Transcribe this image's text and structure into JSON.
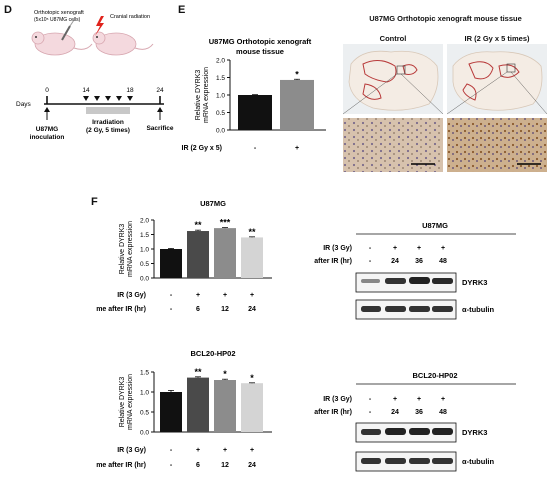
{
  "colors": {
    "black_bar": "#111111",
    "dark_gray": "#4a4a4a",
    "mid_gray": "#8c8c8c",
    "light_gray": "#b9b9b9",
    "pale_gray": "#d4d4d4",
    "radiation_red": "#e0231c",
    "tissue_bg": "#e9ecef",
    "ihc_bg": "#d9c2ab",
    "outline_red": "#c23c3c"
  },
  "panel_D": {
    "letter": "D",
    "mouse_label_1": "Orthotopic xenograft",
    "mouse_label_2": "(5x10⁵ U87MG cells)",
    "radiation_label": "Cranial radiation",
    "days_label": "Days",
    "days": [
      "0",
      "14",
      "18",
      "24"
    ],
    "event_1_line1": "U87MG",
    "event_1_line2": "inoculation",
    "event_2_line1": "Irradiation",
    "event_2_line2": "(2 Gy, 5 times)",
    "event_3": "Sacrifice"
  },
  "panel_E": {
    "letter": "E",
    "chart_title_1": "U87MG Orthotopic xenograft",
    "chart_title_2": "mouse tissue",
    "tissue_title": "U87MG Orthotopic xenograft mouse tissue",
    "control_label": "Control",
    "ir_label": "IR (2 Gy x 5 times)"
  },
  "panel_F": {
    "letter": "F",
    "blot_u87_title": "U87MG",
    "blot_bcl_title": "BCL20-HP02",
    "blot_row_ir": "IR (3 Gy)",
    "blot_row_time": "Time after IR (hr)",
    "blot_ir_values": [
      "-",
      "+",
      "+",
      "+"
    ],
    "blot_time_values": [
      "-",
      "24",
      "36",
      "48"
    ],
    "band_dyrk3": "DYRK3",
    "band_tubulin": "α-tubulin"
  },
  "chart_data": [
    {
      "id": "E",
      "type": "bar",
      "title": "U87MG Orthotopic xenograft mouse tissue",
      "ylabel": "Relative DYRK3 mRNA expression",
      "ylim": [
        0,
        2.0
      ],
      "yticks": [
        "0.0",
        "0.5",
        "1.0",
        "1.5",
        "2.0"
      ],
      "categories": [
        "-",
        "+"
      ],
      "values": [
        1.0,
        1.43
      ],
      "errors": [
        0.01,
        0.02
      ],
      "significance": [
        "",
        "*"
      ],
      "row_labels": [
        "IR (2 Gy x 5)"
      ],
      "rows": [
        [
          "-",
          "+"
        ]
      ]
    },
    {
      "id": "F1",
      "type": "bar",
      "title": "U87MG",
      "ylabel": "Relative DYRK3 mRNA expression",
      "ylim": [
        0,
        2.0
      ],
      "yticks": [
        "0.0",
        "0.5",
        "1.0",
        "1.5",
        "2.0"
      ],
      "categories": [
        "-",
        "6",
        "12",
        "24"
      ],
      "values": [
        1.0,
        1.62,
        1.72,
        1.4
      ],
      "errors": [
        0.02,
        0.03,
        0.02,
        0.02
      ],
      "significance": [
        "",
        "**",
        "***",
        "**"
      ],
      "row_labels": [
        "IR (3 Gy)",
        "Time after IR (hr)"
      ],
      "rows": [
        [
          "-",
          "+",
          "+",
          "+"
        ],
        [
          "-",
          "6",
          "12",
          "24"
        ]
      ]
    },
    {
      "id": "F2",
      "type": "bar",
      "title": "BCL20-HP02",
      "ylabel": "Relative DYRK3 mRNA expression",
      "ylim": [
        0,
        1.5
      ],
      "yticks": [
        "0.0",
        "0.5",
        "1.0",
        "1.5"
      ],
      "categories": [
        "-",
        "6",
        "12",
        "24"
      ],
      "values": [
        1.0,
        1.36,
        1.3,
        1.22
      ],
      "errors": [
        0.04,
        0.02,
        0.02,
        0.01
      ],
      "significance": [
        "",
        "**",
        "*",
        "*"
      ],
      "row_labels": [
        "IR (3 Gy)",
        "Time after IR (hr)"
      ],
      "rows": [
        [
          "-",
          "+",
          "+",
          "+"
        ],
        [
          "-",
          "6",
          "12",
          "24"
        ]
      ]
    }
  ]
}
